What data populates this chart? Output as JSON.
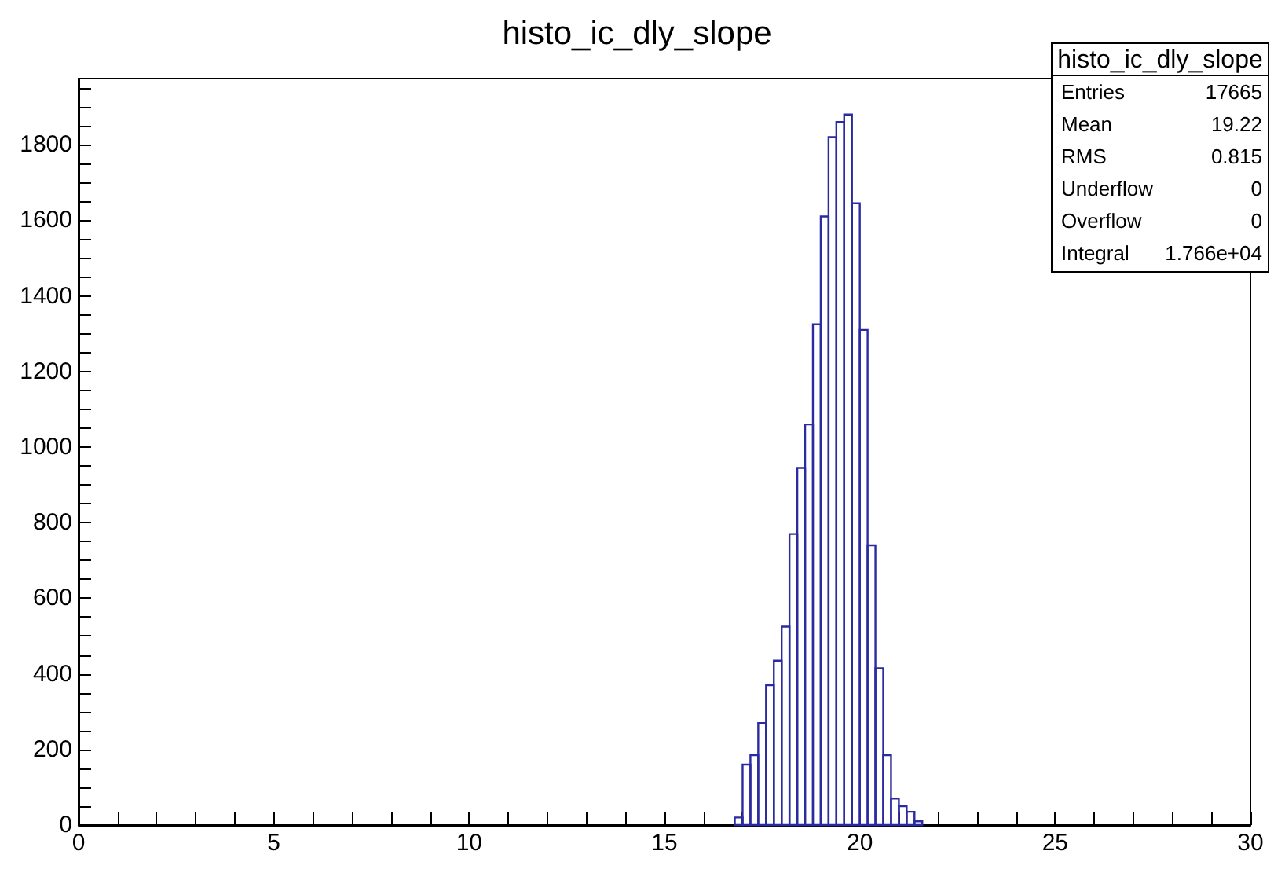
{
  "chart_data": {
    "type": "histogram",
    "title": "histo_ic_dly_slope",
    "bins": [
      16.8,
      17.0,
      17.2,
      17.4,
      17.6,
      17.8,
      18.0,
      18.2,
      18.4,
      18.6,
      18.8,
      19.0,
      19.2,
      19.4,
      19.6,
      19.8,
      20.0,
      20.2,
      20.4,
      20.6,
      20.8,
      21.0,
      21.2,
      21.4,
      21.6
    ],
    "values": [
      20,
      160,
      185,
      270,
      370,
      435,
      525,
      770,
      945,
      1060,
      1325,
      1610,
      1820,
      1860,
      1880,
      1645,
      1310,
      740,
      415,
      185,
      70,
      50,
      35,
      10
    ],
    "color": "#2b2ba0",
    "xlim": [
      0,
      30
    ],
    "xticks": [
      0,
      {
        "value": 1,
        "label": null
      },
      {
        "value": 2,
        "label": null
      },
      {
        "value": 3,
        "label": null
      },
      {
        "value": 4,
        "label": null
      },
      5,
      {
        "value": 6,
        "label": null
      },
      {
        "value": 7,
        "label": null
      },
      {
        "value": 8,
        "label": null
      },
      {
        "value": 9,
        "label": null
      },
      10,
      {
        "value": 11,
        "label": null
      },
      {
        "value": 12,
        "label": null
      },
      {
        "value": 13,
        "label": null
      },
      {
        "value": 14,
        "label": null
      },
      15,
      {
        "value": 16,
        "label": null
      },
      {
        "value": 17,
        "label": null
      },
      {
        "value": 18,
        "label": null
      },
      {
        "value": 19,
        "label": null
      },
      20,
      {
        "value": 21,
        "label": null
      },
      {
        "value": 22,
        "label": null
      },
      {
        "value": 23,
        "label": null
      },
      {
        "value": 24,
        "label": null
      },
      25,
      {
        "value": 26,
        "label": null
      },
      {
        "value": 27,
        "label": null
      },
      {
        "value": 28,
        "label": null
      },
      {
        "value": 29,
        "label": null
      },
      30
    ],
    "ylim": [
      0,
      1975
    ],
    "yticks": [
      0,
      {
        "value": 50,
        "label": null
      },
      {
        "value": 100,
        "label": null
      },
      {
        "value": 150,
        "label": null
      },
      200,
      {
        "value": 250,
        "label": null
      },
      {
        "value": 300,
        "label": null
      },
      {
        "value": 350,
        "label": null
      },
      400,
      {
        "value": 450,
        "label": null
      },
      {
        "value": 500,
        "label": null
      },
      {
        "value": 550,
        "label": null
      },
      600,
      {
        "value": 650,
        "label": null
      },
      {
        "value": 700,
        "label": null
      },
      {
        "value": 750,
        "label": null
      },
      800,
      {
        "value": 850,
        "label": null
      },
      {
        "value": 900,
        "label": null
      },
      {
        "value": 950,
        "label": null
      },
      1000,
      {
        "value": 1050,
        "label": null
      },
      {
        "value": 1100,
        "label": null
      },
      {
        "value": 1150,
        "label": null
      },
      1200,
      {
        "value": 1250,
        "label": null
      },
      {
        "value": 1300,
        "label": null
      },
      {
        "value": 1350,
        "label": null
      },
      1400,
      {
        "value": 1450,
        "label": null
      },
      {
        "value": 1500,
        "label": null
      },
      {
        "value": 1550,
        "label": null
      },
      1600,
      {
        "value": 1650,
        "label": null
      },
      {
        "value": 1700,
        "label": null
      },
      {
        "value": 1750,
        "label": null
      },
      1800,
      {
        "value": 1850,
        "label": null
      },
      {
        "value": 1900,
        "label": null
      },
      {
        "value": 1950,
        "label": null
      }
    ],
    "grid": false,
    "legend": false,
    "annotations": [
      "histo_ic_dly_slope",
      "Entries 17665",
      "Mean 19.22",
      "RMS 0.815",
      "Underflow 0",
      "Overflow 0",
      "Integral 1.766e+04"
    ]
  }
}
